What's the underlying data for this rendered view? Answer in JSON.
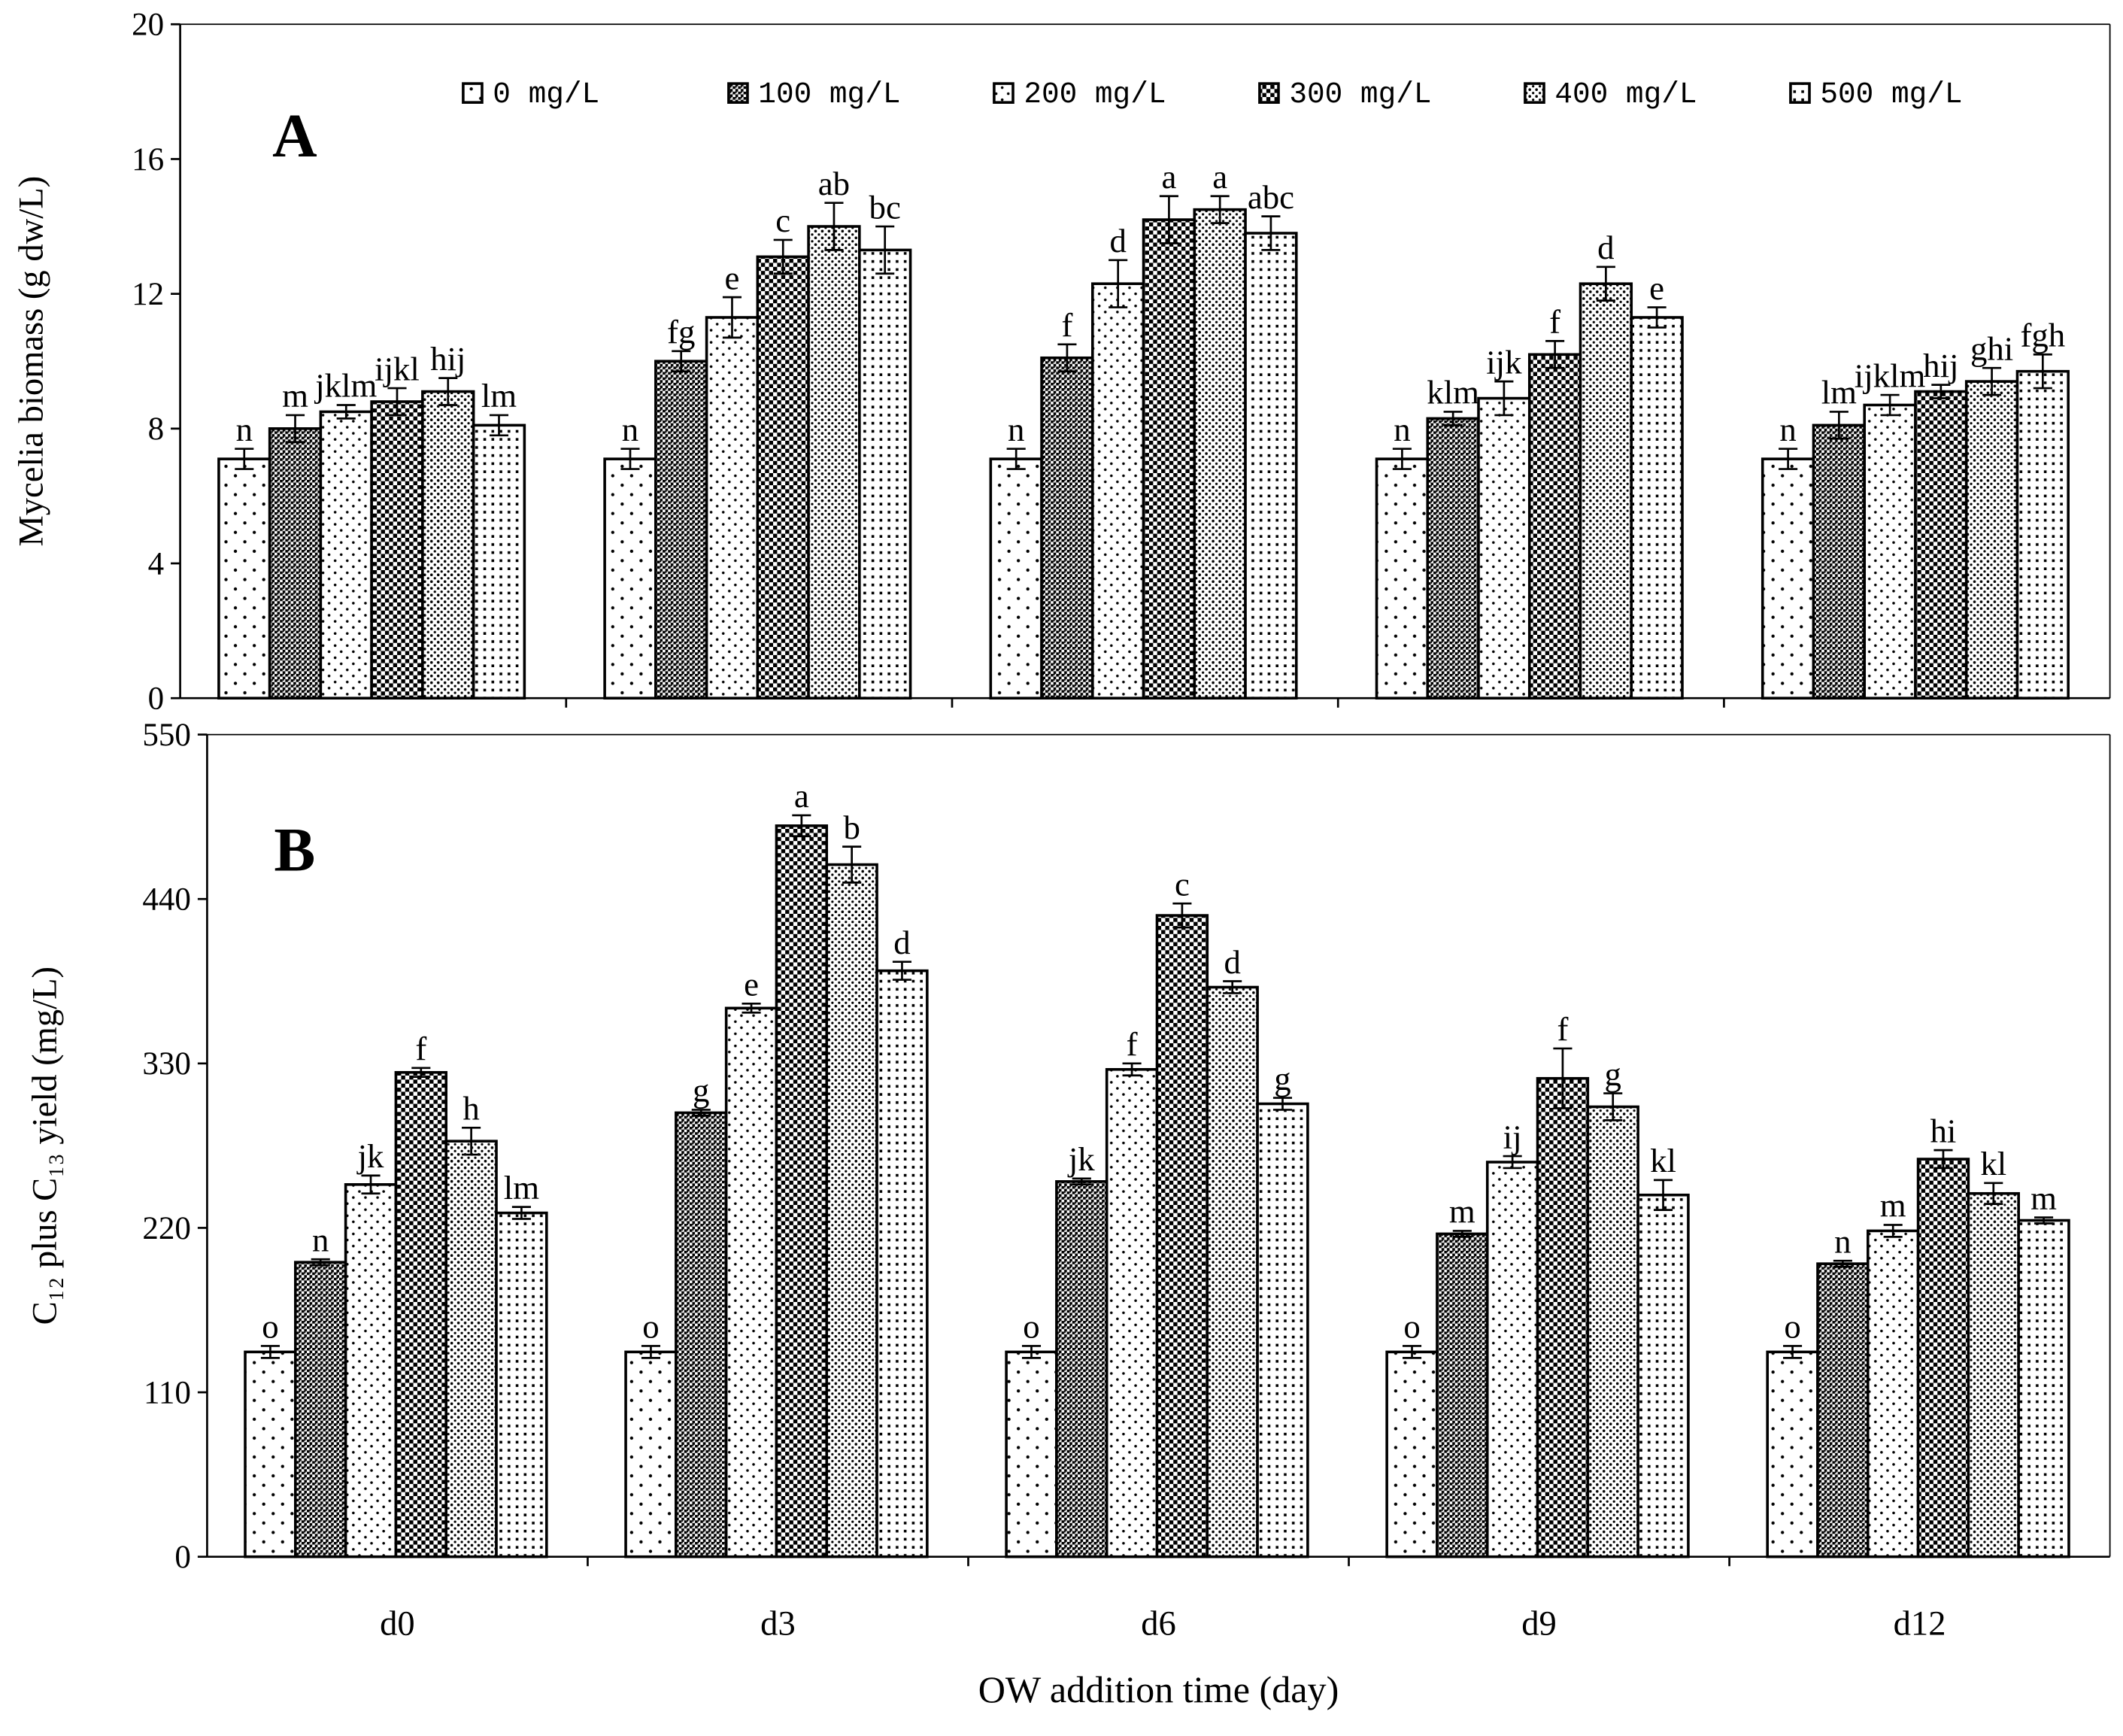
{
  "chart_data": [
    {
      "type": "bar",
      "panel_label": "A",
      "y_label": "Mycelia biomass (g dw/L)",
      "categories": [
        null,
        null,
        null,
        null,
        null
      ],
      "ylim": [
        0,
        20
      ],
      "yticks": [
        0,
        4,
        8,
        12,
        16,
        20
      ],
      "grid": false,
      "legend": "top",
      "series": [
        {
          "name": "0 mg/L",
          "pattern": "sparse-dots",
          "values": [
            7.1,
            7.1,
            7.1,
            7.1,
            7.1
          ],
          "errors": [
            0.3,
            0.3,
            0.3,
            0.3,
            0.3
          ],
          "annotations": [
            "n",
            "n",
            "n",
            "n",
            "n"
          ]
        },
        {
          "name": "100 mg/L",
          "pattern": "dark-checker",
          "values": [
            8.0,
            10.0,
            10.1,
            8.3,
            8.1
          ],
          "errors": [
            0.4,
            0.3,
            0.4,
            0.2,
            0.4
          ],
          "annotations": [
            "m",
            "fg",
            "f",
            "klm",
            "lm"
          ]
        },
        {
          "name": "200 mg/L",
          "pattern": "fine-dots",
          "values": [
            8.5,
            11.3,
            12.3,
            8.9,
            8.7
          ],
          "errors": [
            0.2,
            0.6,
            0.7,
            0.5,
            0.3
          ],
          "annotations": [
            "jklm",
            "e",
            "d",
            "ijk",
            "ijklm"
          ]
        },
        {
          "name": "300 mg/L",
          "pattern": "checker",
          "values": [
            8.8,
            13.1,
            14.2,
            10.2,
            9.1
          ],
          "errors": [
            0.4,
            0.5,
            0.7,
            0.4,
            0.2
          ],
          "annotations": [
            "ijkl",
            "c",
            "a",
            "f",
            "hij"
          ]
        },
        {
          "name": "400 mg/L",
          "pattern": "dense-dots",
          "values": [
            9.1,
            14.0,
            14.5,
            12.3,
            9.4
          ],
          "errors": [
            0.4,
            0.7,
            0.4,
            0.5,
            0.4
          ],
          "annotations": [
            "hij",
            "ab",
            "a",
            "d",
            "ghi"
          ]
        },
        {
          "name": "500 mg/L",
          "pattern": "grid-dots",
          "values": [
            8.1,
            13.3,
            13.8,
            11.3,
            9.7
          ],
          "errors": [
            0.3,
            0.7,
            0.5,
            0.3,
            0.5
          ],
          "annotations": [
            "lm",
            "bc",
            "abc",
            "e",
            "fgh"
          ]
        }
      ]
    },
    {
      "type": "bar",
      "panel_label": "B",
      "y_label": "C₁₂ plus C₁₃ yield (mg/L)",
      "x_label": "OW addition time (day)",
      "categories": [
        "d0",
        "d3",
        "d6",
        "d9",
        "d12"
      ],
      "ylim": [
        0,
        550
      ],
      "yticks": [
        0,
        110,
        220,
        330,
        440,
        550
      ],
      "grid": false,
      "series": [
        {
          "pattern": "sparse-dots",
          "values": [
            137,
            137,
            137,
            137,
            137
          ],
          "errors": [
            4,
            4,
            4,
            4,
            4
          ],
          "annotations": [
            "o",
            "o",
            "o",
            "o",
            "o"
          ]
        },
        {
          "pattern": "dark-checker",
          "values": [
            197,
            297,
            251,
            216,
            196
          ],
          "errors": [
            2,
            2,
            2,
            2,
            2
          ],
          "annotations": [
            "n",
            "g",
            "jk",
            "m",
            "n"
          ]
        },
        {
          "pattern": "fine-dots",
          "values": [
            249,
            367,
            326,
            264,
            218
          ],
          "errors": [
            6,
            3,
            4,
            4,
            4
          ],
          "annotations": [
            "jk",
            "e",
            "f",
            "ij",
            "m"
          ]
        },
        {
          "pattern": "checker",
          "values": [
            324,
            489,
            429,
            320,
            266
          ],
          "errors": [
            3,
            7,
            8,
            20,
            6
          ],
          "annotations": [
            "f",
            "a",
            "c",
            "f",
            "hi"
          ]
        },
        {
          "pattern": "dense-dots",
          "values": [
            278,
            463,
            381,
            301,
            243
          ],
          "errors": [
            9,
            12,
            4,
            9,
            7
          ],
          "annotations": [
            "h",
            "b",
            "d",
            "g",
            "kl"
          ]
        },
        {
          "pattern": "grid-dots",
          "values": [
            230,
            392,
            303,
            242,
            225
          ],
          "errors": [
            4,
            6,
            4,
            10,
            2
          ],
          "annotations": [
            "lm",
            "d",
            "g",
            "kl",
            "m"
          ]
        }
      ]
    }
  ]
}
